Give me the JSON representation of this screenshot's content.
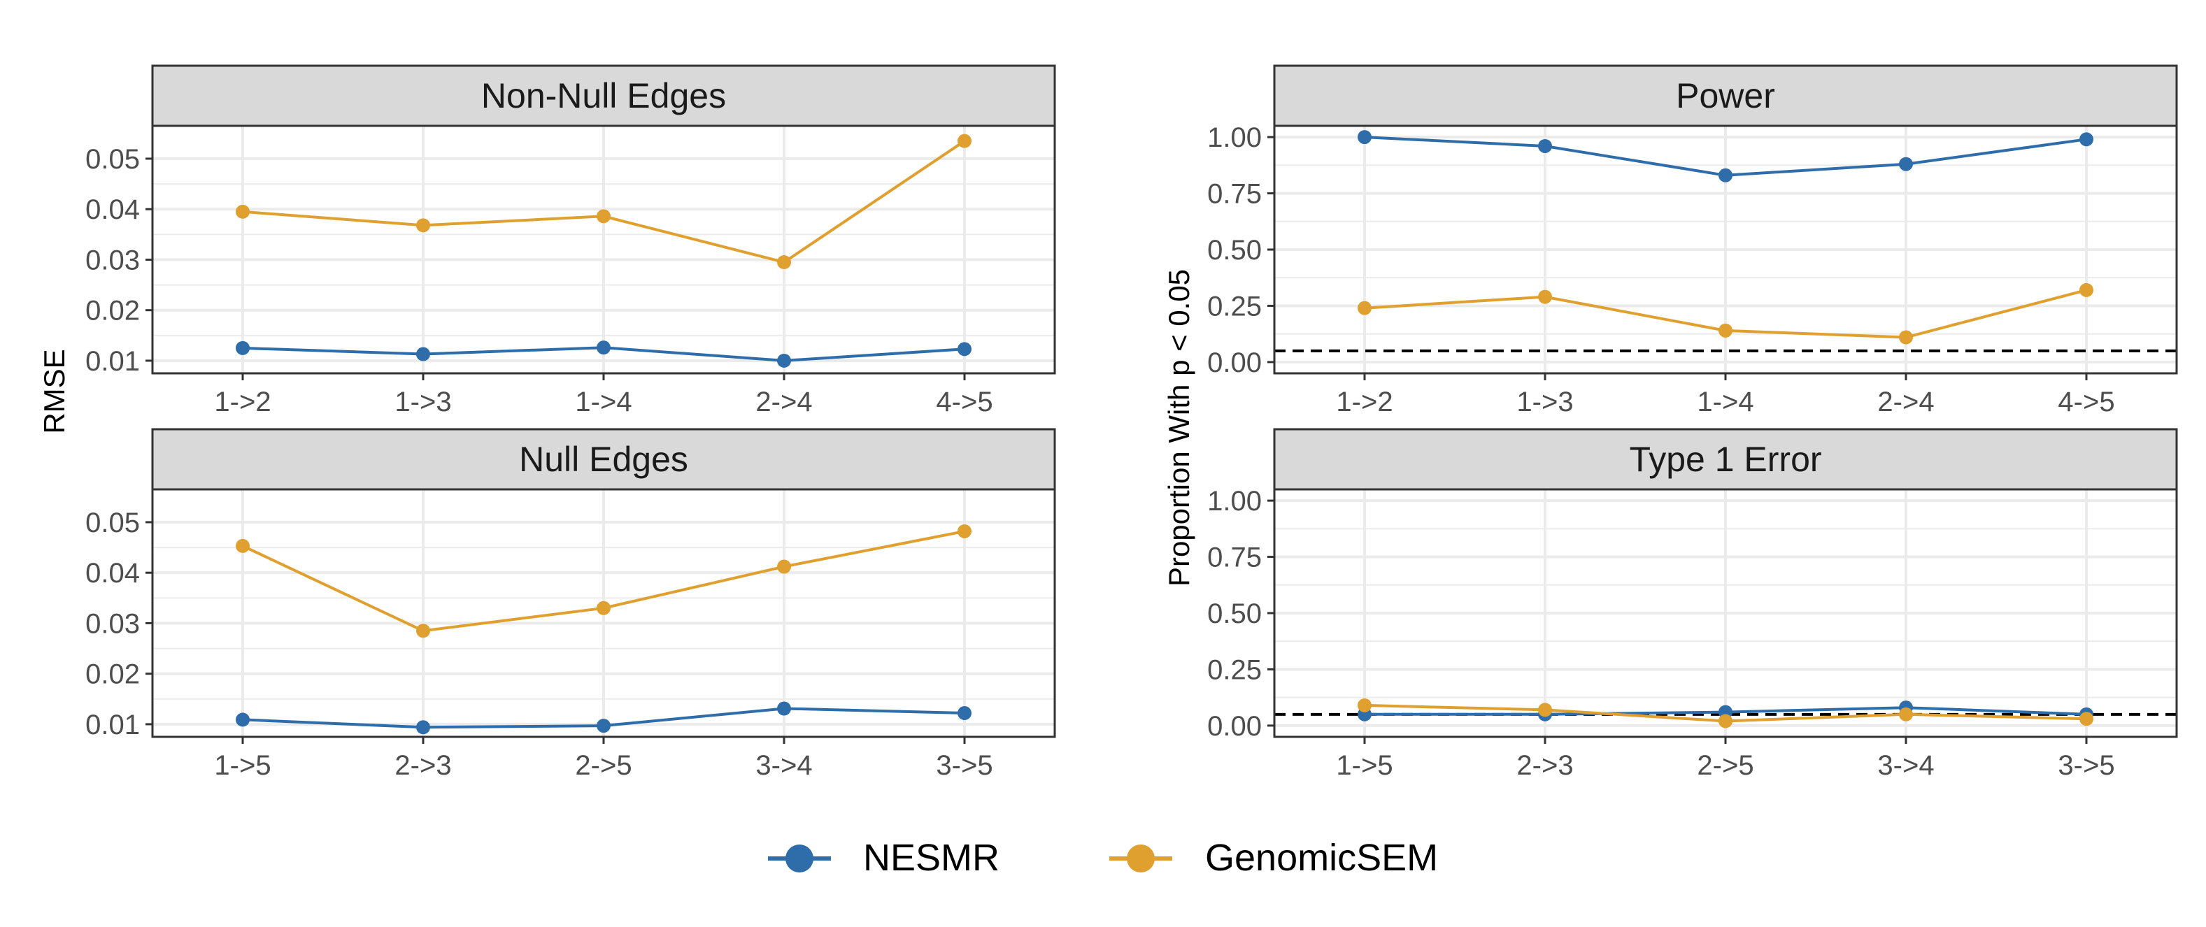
{
  "colors": {
    "NESMR": "#2E6DAA",
    "GenomicSEM": "#E0A030",
    "strip_fill": "#D9D9D9",
    "grid": "#EBEBEB",
    "axis_text": "#4D4D4D"
  },
  "y_axis_labels": {
    "left": "RMSE",
    "right": "Proportion With p < 0.05"
  },
  "legend": {
    "position": "bottom",
    "items": [
      {
        "name": "NESMR",
        "color_key": "NESMR"
      },
      {
        "name": "GenomicSEM",
        "color_key": "GenomicSEM"
      }
    ]
  },
  "chart_data": [
    {
      "type": "line",
      "title": "Non-Null Edges",
      "categories": [
        "1->2",
        "1->3",
        "1->4",
        "2->4",
        "4->5"
      ],
      "ylim": [
        0.0075,
        0.0565
      ],
      "yticks": [
        0.01,
        0.02,
        0.03,
        0.04,
        0.05
      ],
      "ytick_labels": [
        "0.01",
        "0.02",
        "0.03",
        "0.04",
        "0.05"
      ],
      "grid": true,
      "hline": null,
      "series": [
        {
          "name": "NESMR",
          "values": [
            0.0125,
            0.0113,
            0.0126,
            0.01,
            0.0123
          ]
        },
        {
          "name": "GenomicSEM",
          "values": [
            0.0395,
            0.0368,
            0.0386,
            0.0295,
            0.0535
          ]
        }
      ]
    },
    {
      "type": "line",
      "title": "Power",
      "categories": [
        "1->2",
        "1->3",
        "1->4",
        "2->4",
        "4->5"
      ],
      "ylim": [
        -0.05,
        1.05
      ],
      "yticks": [
        0.0,
        0.25,
        0.5,
        0.75,
        1.0
      ],
      "ytick_labels": [
        "0.00",
        "0.25",
        "0.50",
        "0.75",
        "1.00"
      ],
      "grid": true,
      "hline": 0.05,
      "series": [
        {
          "name": "NESMR",
          "values": [
            1.0,
            0.96,
            0.83,
            0.88,
            0.99
          ]
        },
        {
          "name": "GenomicSEM",
          "values": [
            0.24,
            0.29,
            0.14,
            0.11,
            0.32
          ]
        }
      ]
    },
    {
      "type": "line",
      "title": "Null Edges",
      "categories": [
        "1->5",
        "2->3",
        "2->5",
        "3->4",
        "3->5"
      ],
      "ylim": [
        0.0075,
        0.0565
      ],
      "yticks": [
        0.01,
        0.02,
        0.03,
        0.04,
        0.05
      ],
      "ytick_labels": [
        "0.01",
        "0.02",
        "0.03",
        "0.04",
        "0.05"
      ],
      "grid": true,
      "hline": null,
      "series": [
        {
          "name": "NESMR",
          "values": [
            0.0109,
            0.0094,
            0.0097,
            0.0131,
            0.0122
          ]
        },
        {
          "name": "GenomicSEM",
          "values": [
            0.0453,
            0.0285,
            0.033,
            0.0412,
            0.0482
          ]
        }
      ]
    },
    {
      "type": "line",
      "title": "Type 1 Error",
      "categories": [
        "1->5",
        "2->3",
        "2->5",
        "3->4",
        "3->5"
      ],
      "ylim": [
        -0.05,
        1.05
      ],
      "yticks": [
        0.0,
        0.25,
        0.5,
        0.75,
        1.0
      ],
      "ytick_labels": [
        "0.00",
        "0.25",
        "0.50",
        "0.75",
        "1.00"
      ],
      "grid": true,
      "hline": 0.05,
      "series": [
        {
          "name": "NESMR",
          "values": [
            0.05,
            0.05,
            0.06,
            0.08,
            0.05
          ]
        },
        {
          "name": "GenomicSEM",
          "values": [
            0.09,
            0.07,
            0.02,
            0.05,
            0.03
          ]
        }
      ]
    }
  ]
}
